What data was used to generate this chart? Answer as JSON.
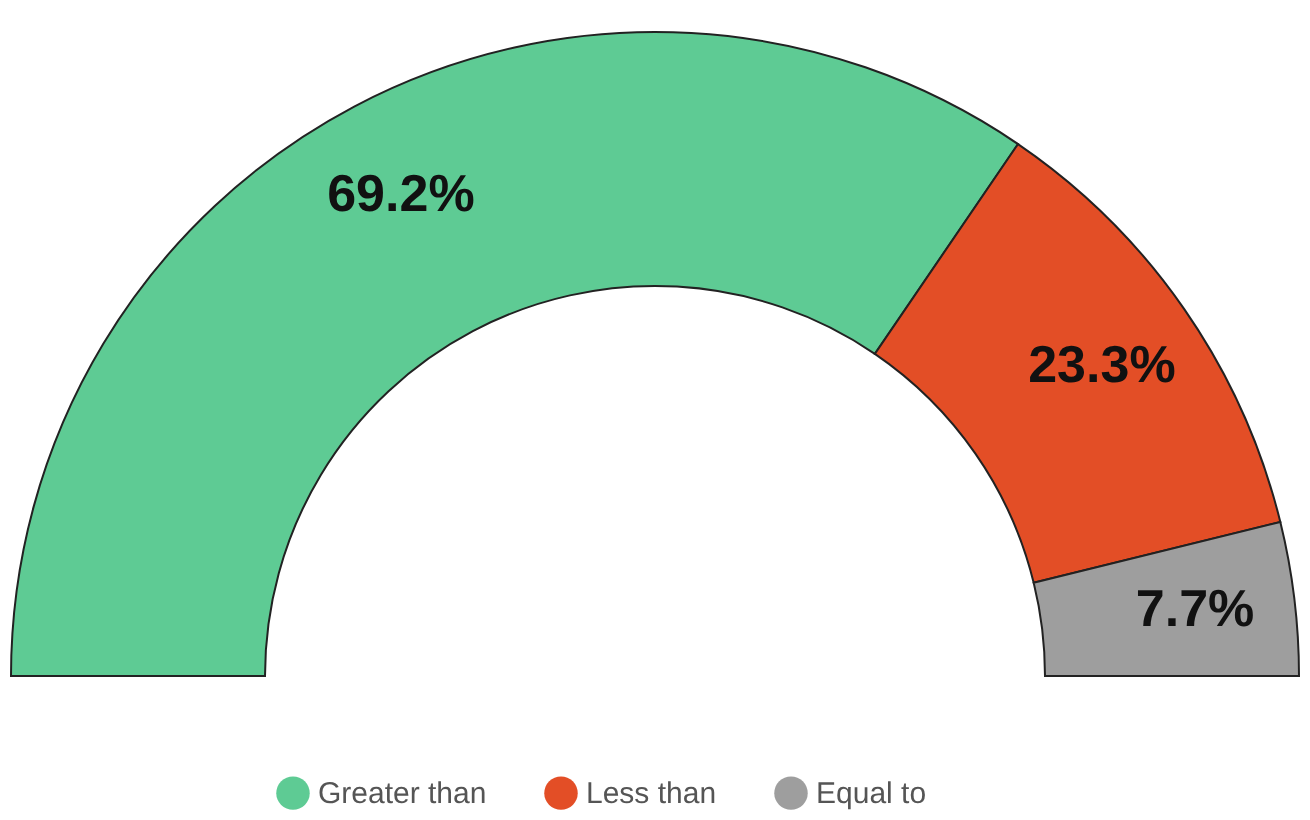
{
  "chart_data": {
    "type": "donut",
    "categories": [
      "Greater than",
      "Less than",
      "Equal to"
    ],
    "values": [
      69.2,
      23.3,
      7.7
    ],
    "colors": [
      "#5ecb94",
      "#e34e26",
      "#9e9e9e"
    ],
    "value_labels": [
      "69.2%",
      "23.3%",
      "7.7%"
    ],
    "legend": "bottom"
  }
}
